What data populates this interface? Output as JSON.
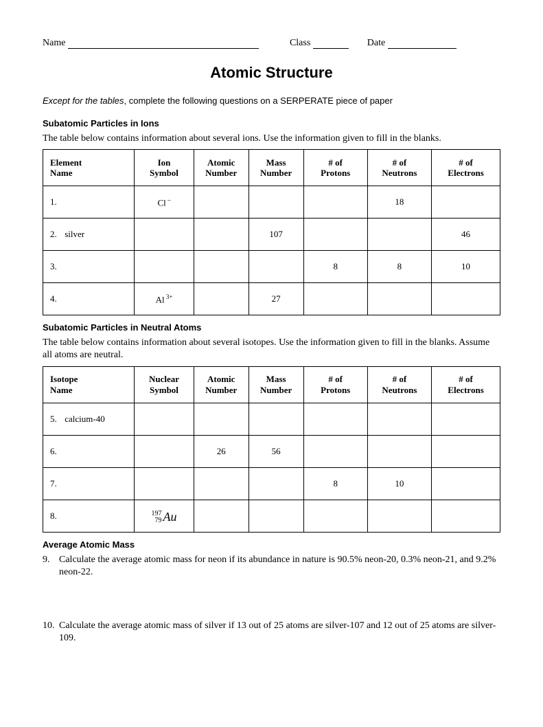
{
  "header": {
    "name_label": "Name",
    "class_label": "Class",
    "date_label": "Date"
  },
  "title": "Atomic Structure",
  "instruction_italic": "Except for the tables",
  "instruction_rest": ", complete the following questions on a SERPERATE piece of paper",
  "section1": {
    "heading": "Subatomic Particles in Ions",
    "intro": "The table below contains information about several ions.  Use the information given to fill in the blanks.",
    "columns": {
      "c1a": "Element",
      "c1b": "Name",
      "c2a": "Ion",
      "c2b": "Symbol",
      "c3a": "Atomic",
      "c3b": "Number",
      "c4a": "Mass",
      "c4b": "Number",
      "c5a": "#  of",
      "c5b": "Protons",
      "c6a": "# of",
      "c6b": "Neutrons",
      "c7a": "# of",
      "c7b": "Electrons"
    },
    "rows": [
      {
        "num": "1.",
        "name": "",
        "sym": "Cl",
        "sup": " –",
        "anum": "",
        "mnum": "",
        "prot": "",
        "neut": "18",
        "elec": ""
      },
      {
        "num": "2.",
        "name": "silver",
        "sym": "",
        "sup": "",
        "anum": "",
        "mnum": "107",
        "prot": "",
        "neut": "",
        "elec": "46"
      },
      {
        "num": "3.",
        "name": "",
        "sym": "",
        "sup": "",
        "anum": "",
        "mnum": "",
        "prot": "8",
        "neut": "8",
        "elec": "10"
      },
      {
        "num": "4.",
        "name": "",
        "sym": "Al",
        "sup": " 3+",
        "anum": "",
        "mnum": "27",
        "prot": "",
        "neut": "",
        "elec": ""
      }
    ]
  },
  "section2": {
    "heading": "Subatomic Particles in Neutral Atoms",
    "intro": "The table below contains information about several isotopes.  Use the information given to fill in the blanks.  Assume all atoms are neutral.",
    "columns": {
      "c1a": "Isotope",
      "c1b": "Name",
      "c2a": "Nuclear",
      "c2b": "Symbol",
      "c3a": "Atomic",
      "c3b": "Number",
      "c4a": "Mass",
      "c4b": "Number",
      "c5a": "#  of",
      "c5b": "Protons",
      "c6a": "# of",
      "c6b": "Neutrons",
      "c7a": "# of",
      "c7b": "Electrons"
    },
    "rows": [
      {
        "num": "5.",
        "name": "calcium-40",
        "sym": "",
        "anum": "",
        "mnum": "",
        "prot": "",
        "neut": "",
        "elec": ""
      },
      {
        "num": "6.",
        "name": "",
        "sym": "",
        "anum": "26",
        "mnum": "56",
        "prot": "",
        "neut": "",
        "elec": ""
      },
      {
        "num": "7.",
        "name": "",
        "sym": "",
        "anum": "",
        "mnum": "",
        "prot": "8",
        "neut": "10",
        "elec": ""
      },
      {
        "num": "8.",
        "name": "",
        "sym": "NUCLIDE",
        "nucl_top": "197",
        "nucl_bot": "79",
        "nucl_el": "Au",
        "anum": "",
        "mnum": "",
        "prot": "",
        "neut": "",
        "elec": ""
      }
    ]
  },
  "section3": {
    "heading": "Average Atomic Mass",
    "q9num": "9.",
    "q9": "Calculate the average atomic mass for neon if its abundance in nature is 90.5% neon-20, 0.3% neon-21, and 9.2% neon-22.",
    "q10num": "10.",
    "q10": "Calculate the average atomic mass of silver if 13 out of 25 atoms are silver-107 and 12 out of 25 atoms are silver-109."
  }
}
